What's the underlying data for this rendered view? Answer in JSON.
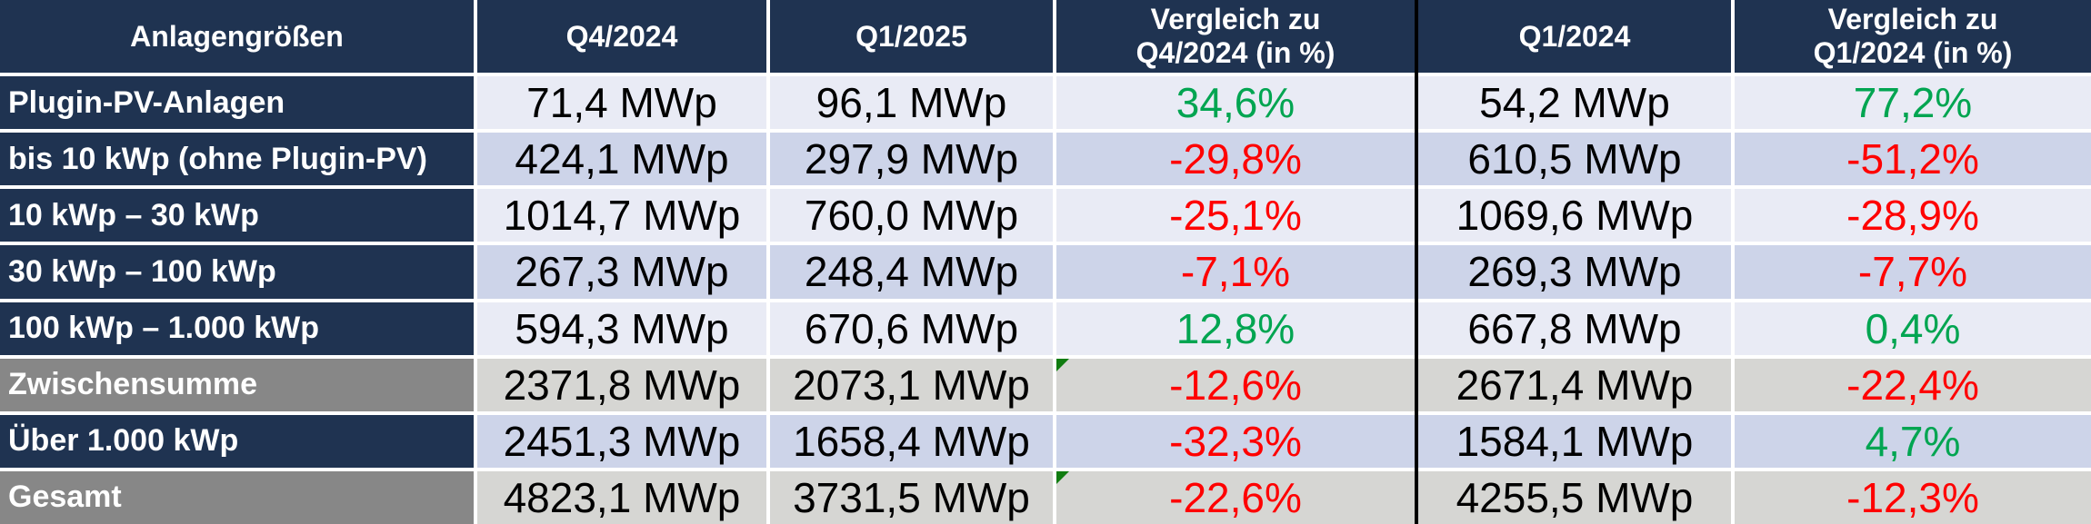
{
  "colors": {
    "header_background": "#1F3351",
    "subtotal_label_background": "#878787",
    "band_light": "#E9EBF5",
    "band_lavender": "#CDD4E9",
    "band_gray": "#D6D6D3",
    "positive_value": "#00A551",
    "negative_value": "#FF0000",
    "column_divider": "#000000",
    "corner_marker": "#107C10"
  },
  "header": {
    "col0": "Anlagengrößen",
    "col1": "Q4/2024",
    "col2": "Q1/2025",
    "col3_line1": "Vergleich zu",
    "col3_line2": "Q4/2024 (in %)",
    "col4": "Q1/2024",
    "col5_line1": "Vergleich zu",
    "col5_line2": "Q1/2024 (in %)"
  },
  "rows": [
    {
      "label": "Plugin-PV-Anlagen",
      "q4_2024": "71,4 MWp",
      "q1_2025": "96,1 MWp",
      "vs_q4": "34,6%",
      "vs_q4_trend": "pos",
      "q1_2024": "54,2 MWp",
      "vs_q1": "77,2%",
      "vs_q1_trend": "pos"
    },
    {
      "label": "bis 10 kWp (ohne Plugin-PV)",
      "q4_2024": "424,1 MWp",
      "q1_2025": "297,9 MWp",
      "vs_q4": "-29,8%",
      "vs_q4_trend": "neg",
      "q1_2024": "610,5 MWp",
      "vs_q1": "-51,2%",
      "vs_q1_trend": "neg"
    },
    {
      "label": "10 kWp – 30 kWp",
      "q4_2024": "1014,7 MWp",
      "q1_2025": "760,0 MWp",
      "vs_q4": "-25,1%",
      "vs_q4_trend": "neg",
      "q1_2024": "1069,6 MWp",
      "vs_q1": "-28,9%",
      "vs_q1_trend": "neg"
    },
    {
      "label": "30 kWp – 100 kWp",
      "q4_2024": "267,3 MWp",
      "q1_2025": "248,4 MWp",
      "vs_q4": "-7,1%",
      "vs_q4_trend": "neg",
      "q1_2024": "269,3 MWp",
      "vs_q1": "-7,7%",
      "vs_q1_trend": "neg"
    },
    {
      "label": "100 kWp – 1.000 kWp",
      "q4_2024": "594,3 MWp",
      "q1_2025": "670,6 MWp",
      "vs_q4": "12,8%",
      "vs_q4_trend": "pos",
      "q1_2024": "667,8 MWp",
      "vs_q1": "0,4%",
      "vs_q1_trend": "pos"
    },
    {
      "label": "Zwischensumme",
      "q4_2024": "2371,8 MWp",
      "q1_2025": "2073,1 MWp",
      "vs_q4": "-12,6%",
      "vs_q4_trend": "neg",
      "q1_2024": "2671,4 MWp",
      "vs_q1": "-22,4%",
      "vs_q1_trend": "neg"
    },
    {
      "label": "Über 1.000 kWp",
      "q4_2024": "2451,3 MWp",
      "q1_2025": "1658,4 MWp",
      "vs_q4": "-32,3%",
      "vs_q4_trend": "neg",
      "q1_2024": "1584,1 MWp",
      "vs_q1": "4,7%",
      "vs_q1_trend": "pos"
    },
    {
      "label": "Gesamt",
      "q4_2024": "4823,1 MWp",
      "q1_2025": "3731,5 MWp",
      "vs_q4": "-22,6%",
      "vs_q4_trend": "neg",
      "q1_2024": "4255,5 MWp",
      "vs_q1": "-12,3%",
      "vs_q1_trend": "neg"
    }
  ],
  "chart_data": {
    "type": "table",
    "row_header": "Anlagengrößen",
    "columns": [
      "Q4/2024",
      "Q1/2025",
      "Vergleich zu Q4/2024 (in %)",
      "Q1/2024",
      "Vergleich zu Q1/2024 (in %)"
    ],
    "row_labels": [
      "Plugin-PV-Anlagen",
      "bis 10 kWp (ohne Plugin-PV)",
      "10 kWp – 30 kWp",
      "30 kWp – 100 kWp",
      "100 kWp – 1.000 kWp",
      "Zwischensumme",
      "Über 1.000 kWp",
      "Gesamt"
    ],
    "series": [
      {
        "name": "Q4/2024",
        "unit": "MWp",
        "values": [
          71.4,
          424.1,
          1014.7,
          267.3,
          594.3,
          2371.8,
          2451.3,
          4823.1
        ]
      },
      {
        "name": "Q1/2025",
        "unit": "MWp",
        "values": [
          96.1,
          297.9,
          760.0,
          248.4,
          670.6,
          2073.1,
          1658.4,
          3731.5
        ]
      },
      {
        "name": "Vergleich zu Q4/2024 (in %)",
        "unit": "%",
        "values": [
          34.6,
          -29.8,
          -25.1,
          -7.1,
          12.8,
          -12.6,
          -32.3,
          -22.6
        ]
      },
      {
        "name": "Q1/2024",
        "unit": "MWp",
        "values": [
          54.2,
          610.5,
          1069.6,
          269.3,
          667.8,
          2671.4,
          1584.1,
          4255.5
        ]
      },
      {
        "name": "Vergleich zu Q1/2024 (in %)",
        "unit": "%",
        "values": [
          77.2,
          -51.2,
          -28.9,
          -7.7,
          0.4,
          -22.4,
          4.7,
          -12.3
        ]
      }
    ],
    "notes": "Negative percentages rendered red, positive rendered green; subtotal rows (Zwischensumme, Gesamt) have gray styling; green corner markers on vs-Q4 cells of Zwischensumme and Gesamt rows."
  }
}
